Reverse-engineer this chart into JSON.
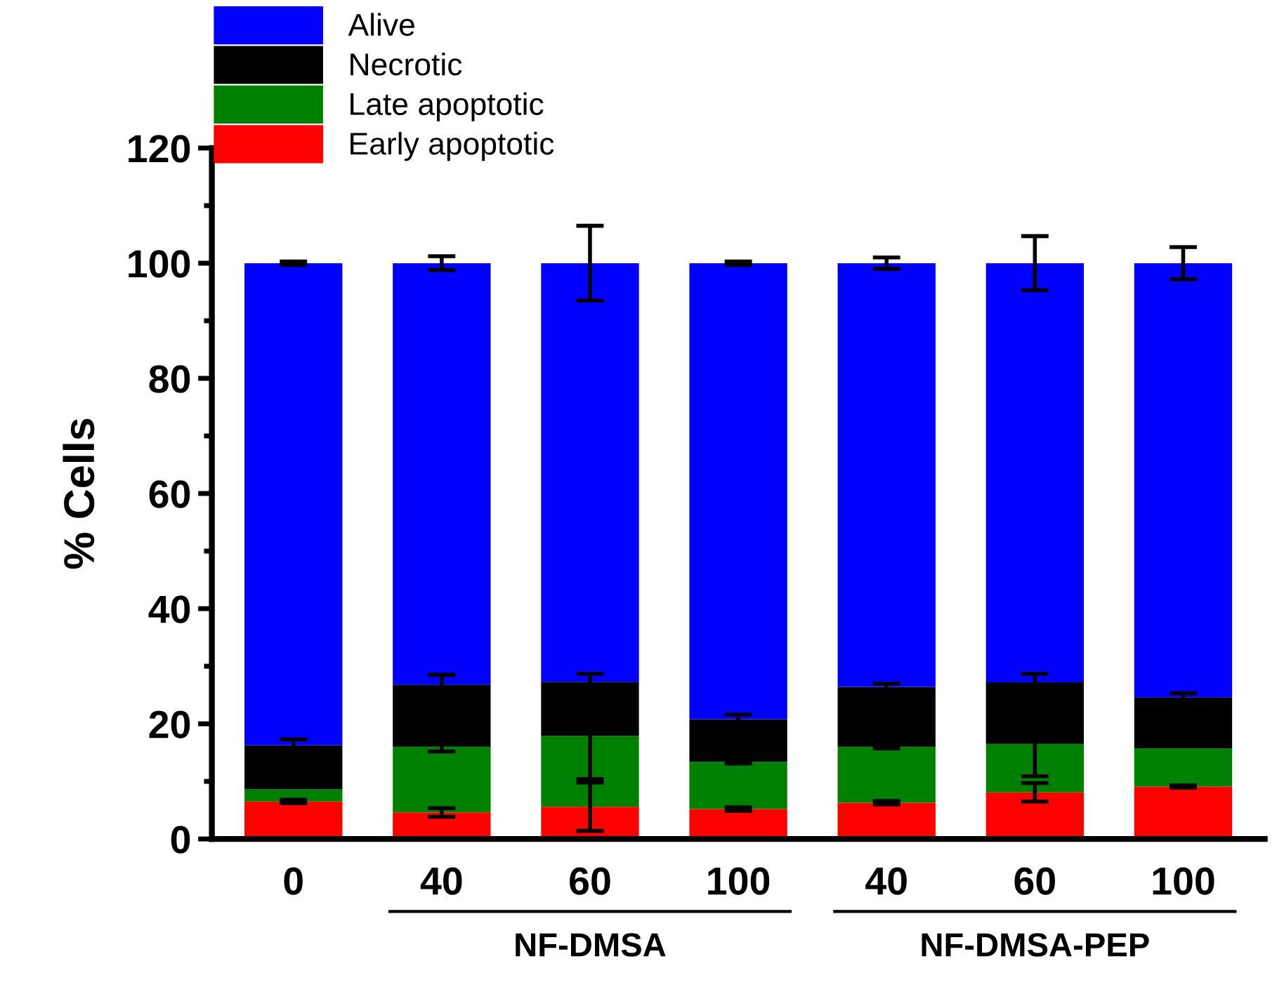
{
  "chart_data": {
    "type": "bar",
    "stacked": true,
    "ylabel": "% Cells",
    "categories": [
      "0",
      "40",
      "60",
      "100",
      "40",
      "60",
      "100"
    ],
    "series": [
      {
        "name": "Early apoptotic",
        "color": "#ff0000",
        "values": [
          6.5,
          4.6,
          5.6,
          5.2,
          6.3,
          8.1,
          9.1
        ],
        "errors": [
          0.3,
          0.75,
          4.2,
          0.3,
          0.3,
          1.6,
          0.2
        ]
      },
      {
        "name": "Late apoptotic",
        "color": "#008000",
        "values": [
          2.1,
          11.4,
          12.3,
          8.2,
          9.7,
          8.4,
          6.6
        ],
        "errors": [
          null,
          0.8,
          7.5,
          0.3,
          0.3,
          5.6,
          null
        ]
      },
      {
        "name": "Necrotic",
        "color": "#000000",
        "values": [
          7.7,
          10.8,
          9.4,
          7.4,
          10.4,
          10.7,
          8.9
        ],
        "errors": [
          1.0,
          1.7,
          1.4,
          0.8,
          0.6,
          1.5,
          0.7
        ]
      },
      {
        "name": "Alive",
        "color": "#0000ff",
        "values": [
          83.7,
          73.2,
          72.7,
          79.2,
          73.6,
          72.8,
          75.4
        ],
        "errors": [
          0.3,
          1.2,
          6.5,
          0.3,
          1.0,
          4.7,
          2.8
        ]
      }
    ],
    "ylim": [
      0,
      120
    ],
    "yticks": [
      0,
      20,
      40,
      60,
      80,
      100,
      120
    ],
    "legend": "top left",
    "grid": false,
    "annotations": [
      "NF-DMSA",
      "NF-DMSA-PEP"
    ]
  }
}
